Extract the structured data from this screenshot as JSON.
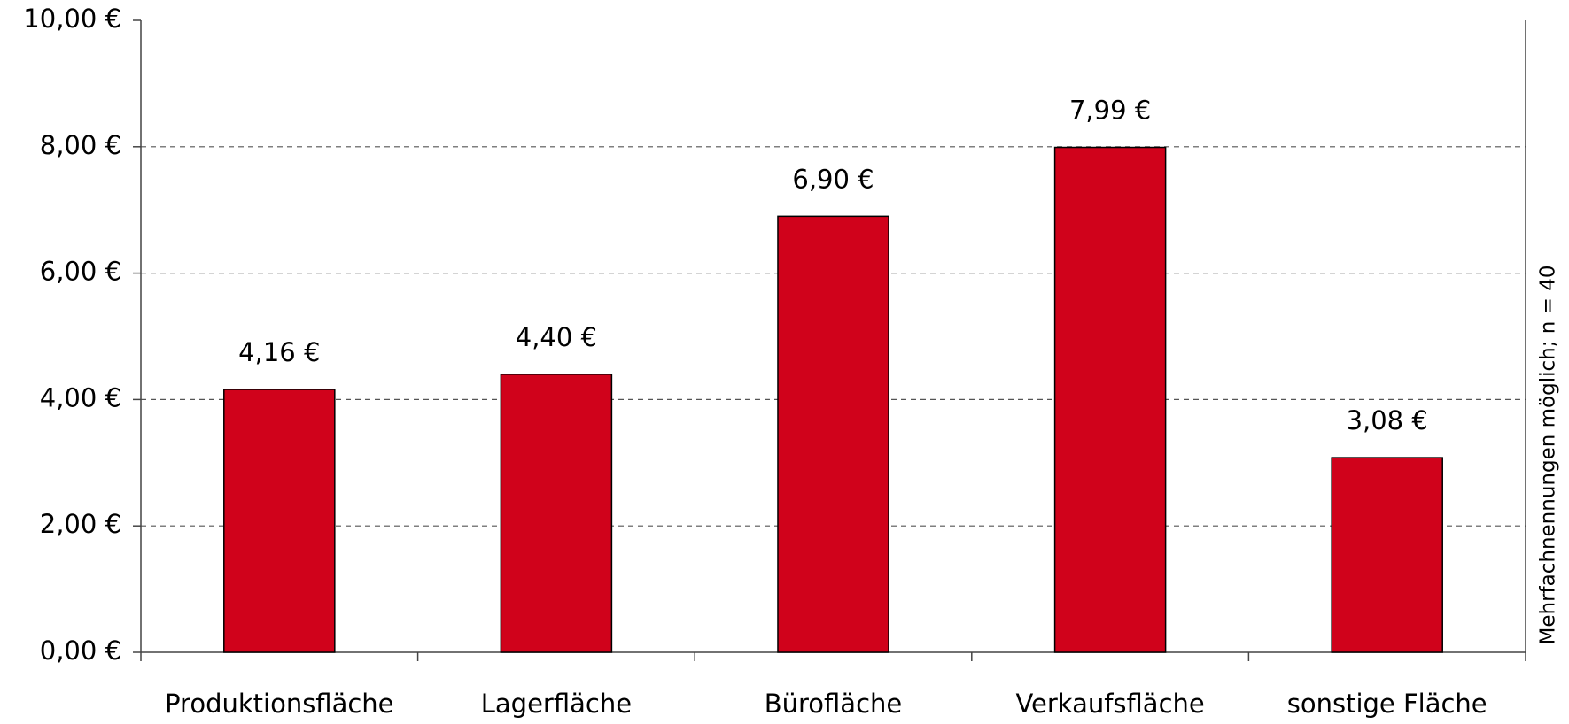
{
  "chart_data": {
    "type": "bar",
    "categories": [
      "Produktionsfläche",
      "Lagerfläche",
      "Bürofläche",
      "Verkaufsfläche",
      "sonstige Fläche"
    ],
    "values": [
      4.16,
      4.4,
      6.9,
      7.99,
      3.08
    ],
    "value_labels": [
      "4,16 €",
      "4,40 €",
      "6,90 €",
      "7,99 €",
      "3,08 €"
    ],
    "color": "#d0021b",
    "ylim": [
      0,
      10
    ],
    "yticks": [
      {
        "value": 0,
        "label": "0,00 €"
      },
      {
        "value": 2,
        "label": "2,00 €"
      },
      {
        "value": 4,
        "label": "4,00 €"
      },
      {
        "value": 6,
        "label": "6,00 €"
      },
      {
        "value": 8,
        "label": "8,00 €"
      },
      {
        "value": 10,
        "label": "10,00 €"
      }
    ],
    "grid": true,
    "annotation": "Mehrfachnennungen möglich; n = 40"
  }
}
